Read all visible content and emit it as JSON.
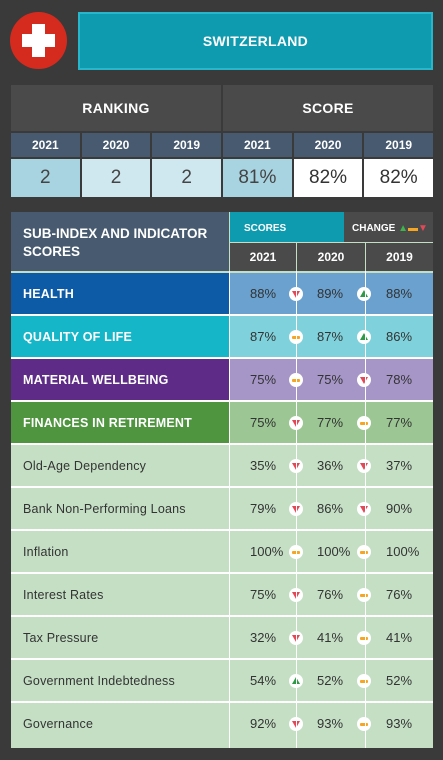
{
  "country": "SWITZERLAND",
  "ranking": {
    "label": "RANKING",
    "years": [
      "2021",
      "2020",
      "2019"
    ],
    "values": [
      "2",
      "2",
      "2"
    ]
  },
  "score": {
    "label": "SCORE",
    "years": [
      "2021",
      "2020",
      "2019"
    ],
    "values": [
      "81%",
      "82%",
      "82%"
    ]
  },
  "table": {
    "title": "SUB-INDEX AND INDICATOR SCORES",
    "scores_label": "SCORES",
    "change_label": "CHANGE",
    "years": [
      "2021",
      "2020",
      "2019"
    ],
    "rows": [
      {
        "name": "HEALTH",
        "type": "sub",
        "theme": "health",
        "values": [
          "88%",
          "89%",
          "88%"
        ],
        "changes": [
          "down",
          "up"
        ]
      },
      {
        "name": "QUALITY OF LIFE",
        "type": "sub",
        "theme": "qol",
        "values": [
          "87%",
          "87%",
          "86%"
        ],
        "changes": [
          "same",
          "up"
        ]
      },
      {
        "name": "MATERIAL WELLBEING",
        "type": "sub",
        "theme": "mat",
        "values": [
          "75%",
          "75%",
          "78%"
        ],
        "changes": [
          "same",
          "down"
        ]
      },
      {
        "name": "FINANCES IN RETIREMENT",
        "type": "sub",
        "theme": "fin",
        "values": [
          "75%",
          "77%",
          "77%"
        ],
        "changes": [
          "down",
          "same"
        ]
      },
      {
        "name": "Old-Age Dependency",
        "type": "ind",
        "values": [
          "35%",
          "36%",
          "37%"
        ],
        "changes": [
          "down",
          "down"
        ]
      },
      {
        "name": "Bank Non-Performing Loans",
        "type": "ind",
        "values": [
          "79%",
          "86%",
          "90%"
        ],
        "changes": [
          "down",
          "down"
        ]
      },
      {
        "name": "Inflation",
        "type": "ind",
        "values": [
          "100%",
          "100%",
          "100%"
        ],
        "changes": [
          "same",
          "same"
        ]
      },
      {
        "name": "Interest Rates",
        "type": "ind",
        "values": [
          "75%",
          "76%",
          "76%"
        ],
        "changes": [
          "down",
          "same"
        ]
      },
      {
        "name": "Tax Pressure",
        "type": "ind",
        "values": [
          "32%",
          "41%",
          "41%"
        ],
        "changes": [
          "down",
          "same"
        ]
      },
      {
        "name": "Government Indebtedness",
        "type": "ind",
        "values": [
          "54%",
          "52%",
          "52%"
        ],
        "changes": [
          "up",
          "same"
        ]
      },
      {
        "name": "Governance",
        "type": "ind",
        "values": [
          "92%",
          "93%",
          "93%"
        ],
        "changes": [
          "down",
          "same"
        ]
      }
    ]
  },
  "colors": {
    "accent": "#0e9bb0",
    "flag_red": "#d52b1e",
    "up": "#2e9a45",
    "same": "#f6a623",
    "down": "#e34856"
  }
}
